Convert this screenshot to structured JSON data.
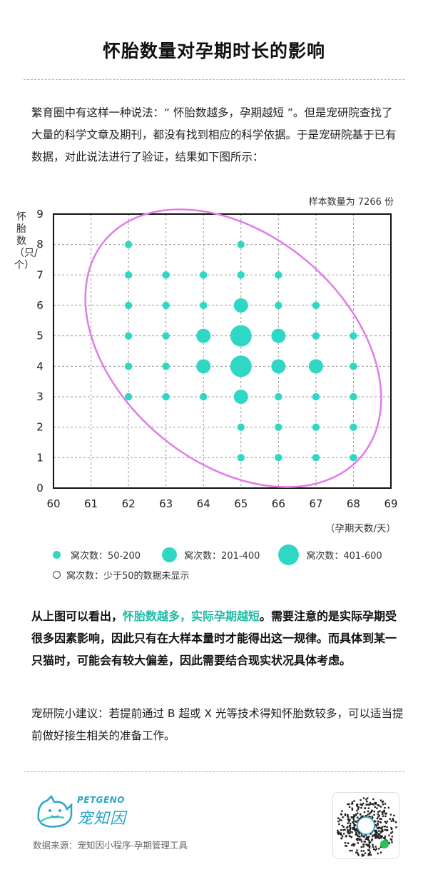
{
  "title": "怀胎数量对孕期时长的影响",
  "intro": "繁育圈中有这样一种说法：“ 怀胎数越多，孕期越短 ”。但是宠研院查找了大量的科学文章及期刊，都没有找到相应的科学依据。于是宠研院基于已有数据，对此说法进行了验证，结果如下图所示：",
  "sample_note": "样本数量为 7266 份",
  "legend": [
    {
      "label": "窝次数：50-200",
      "size": "small"
    },
    {
      "label": "窝次数：201-400",
      "size": "medium"
    },
    {
      "label": "窝次数：401-600",
      "size": "large"
    }
  ],
  "legend_note": "窝次数：少于50的数据未显示",
  "conclusion": {
    "before": "从上图可以看出，",
    "highlight": "怀胎数越多，实际孕期越短",
    "after": "。需要注意的是实际孕期受很多因素影响，因此只有在大样本量时才能得出这一规律。而具体到某一只猫时，可能会有较大偏差，因此需要结合现实状况具体考虑。"
  },
  "advice": "宠研院小建议：若提前通过 B 超或 X 光等技术得知怀胎数较多，可以适当提前做好接生相关的准备工作。",
  "brand": {
    "en": "PETGENO",
    "cn": "宠知因"
  },
  "source": "数据来源：宠知因小程序-孕期管理工具",
  "colors": {
    "dot": "#2fd7c5",
    "ellipse": "#e07de8",
    "highlight": "#1fbba6",
    "brand": "#2aa6c9"
  },
  "chart_data": {
    "type": "scatter",
    "title": "",
    "xlabel": "（孕期天数/天）",
    "ylabel": "怀胎数（只/个）",
    "xlim": [
      60,
      69
    ],
    "ylim": [
      0,
      9
    ],
    "xticks": [
      "60",
      "61",
      "62",
      "63",
      "64",
      "65",
      "66",
      "67",
      "68",
      "69"
    ],
    "yticks": [
      "0",
      "1",
      "2",
      "3",
      "4",
      "5",
      "6",
      "7",
      "8",
      "9"
    ],
    "grid": true,
    "size_categories": [
      "50-200",
      "201-400",
      "401-600"
    ],
    "points": [
      {
        "x": 62,
        "y": 8,
        "size": "50-200"
      },
      {
        "x": 65,
        "y": 8,
        "size": "50-200"
      },
      {
        "x": 62,
        "y": 7,
        "size": "50-200"
      },
      {
        "x": 63,
        "y": 7,
        "size": "50-200"
      },
      {
        "x": 64,
        "y": 7,
        "size": "50-200"
      },
      {
        "x": 65,
        "y": 7,
        "size": "50-200"
      },
      {
        "x": 66,
        "y": 7,
        "size": "50-200"
      },
      {
        "x": 62,
        "y": 6,
        "size": "50-200"
      },
      {
        "x": 63,
        "y": 6,
        "size": "50-200"
      },
      {
        "x": 64,
        "y": 6,
        "size": "50-200"
      },
      {
        "x": 65,
        "y": 6,
        "size": "201-400"
      },
      {
        "x": 66,
        "y": 6,
        "size": "50-200"
      },
      {
        "x": 67,
        "y": 6,
        "size": "50-200"
      },
      {
        "x": 62,
        "y": 5,
        "size": "50-200"
      },
      {
        "x": 63,
        "y": 5,
        "size": "50-200"
      },
      {
        "x": 64,
        "y": 5,
        "size": "201-400"
      },
      {
        "x": 65,
        "y": 5,
        "size": "401-600"
      },
      {
        "x": 66,
        "y": 5,
        "size": "201-400"
      },
      {
        "x": 67,
        "y": 5,
        "size": "50-200"
      },
      {
        "x": 68,
        "y": 5,
        "size": "50-200"
      },
      {
        "x": 62,
        "y": 4,
        "size": "50-200"
      },
      {
        "x": 63,
        "y": 4,
        "size": "50-200"
      },
      {
        "x": 64,
        "y": 4,
        "size": "201-400"
      },
      {
        "x": 65,
        "y": 4,
        "size": "401-600"
      },
      {
        "x": 66,
        "y": 4,
        "size": "201-400"
      },
      {
        "x": 67,
        "y": 4,
        "size": "201-400"
      },
      {
        "x": 68,
        "y": 4,
        "size": "50-200"
      },
      {
        "x": 62,
        "y": 3,
        "size": "50-200"
      },
      {
        "x": 63,
        "y": 3,
        "size": "50-200"
      },
      {
        "x": 64,
        "y": 3,
        "size": "50-200"
      },
      {
        "x": 65,
        "y": 3,
        "size": "201-400"
      },
      {
        "x": 66,
        "y": 3,
        "size": "50-200"
      },
      {
        "x": 67,
        "y": 3,
        "size": "50-200"
      },
      {
        "x": 68,
        "y": 3,
        "size": "50-200"
      },
      {
        "x": 65,
        "y": 2,
        "size": "50-200"
      },
      {
        "x": 66,
        "y": 2,
        "size": "50-200"
      },
      {
        "x": 67,
        "y": 2,
        "size": "50-200"
      },
      {
        "x": 68,
        "y": 2,
        "size": "50-200"
      },
      {
        "x": 65,
        "y": 1,
        "size": "50-200"
      },
      {
        "x": 66,
        "y": 1,
        "size": "50-200"
      },
      {
        "x": 67,
        "y": 1,
        "size": "50-200"
      },
      {
        "x": 68,
        "y": 1,
        "size": "50-200"
      }
    ]
  }
}
